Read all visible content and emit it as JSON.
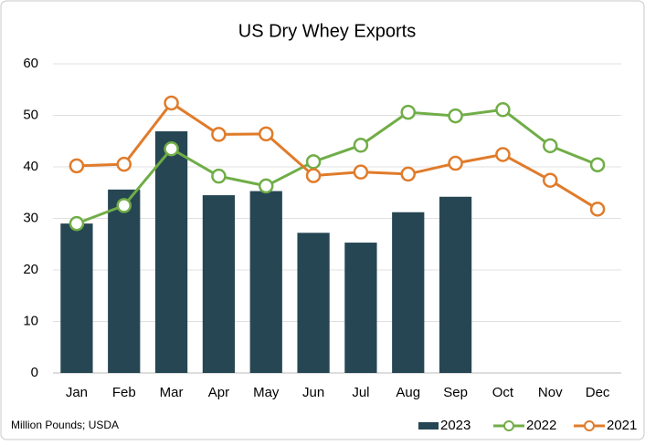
{
  "chart_data": {
    "type": "bar_line",
    "title": "US Dry Whey Exports",
    "note": "Million Pounds; USDA",
    "categories": [
      "Jan",
      "Feb",
      "Mar",
      "Apr",
      "May",
      "Jun",
      "Jul",
      "Aug",
      "Sep",
      "Oct",
      "Nov",
      "Dec"
    ],
    "series": [
      {
        "name": "2023",
        "type": "bar",
        "color": "#264653",
        "values": [
          29,
          35.6,
          46.9,
          34.5,
          35.3,
          27.2,
          25.3,
          31.2,
          34.2,
          null,
          null,
          null
        ]
      },
      {
        "name": "2022",
        "type": "line",
        "color": "#70ad47",
        "values": [
          29,
          32.5,
          43.5,
          38.2,
          36.3,
          41,
          44.2,
          50.6,
          49.9,
          51.1,
          44.1,
          40.4
        ]
      },
      {
        "name": "2021",
        "type": "line",
        "color": "#e07b2a",
        "values": [
          40.2,
          40.5,
          52.4,
          46.3,
          46.4,
          38.3,
          39,
          38.6,
          40.7,
          42.4,
          37.4,
          31.8
        ]
      }
    ],
    "ylim": [
      0,
      60
    ],
    "yticks": [
      0,
      10,
      20,
      30,
      40,
      50,
      60
    ],
    "grid": true,
    "legend": "bottom-right"
  }
}
